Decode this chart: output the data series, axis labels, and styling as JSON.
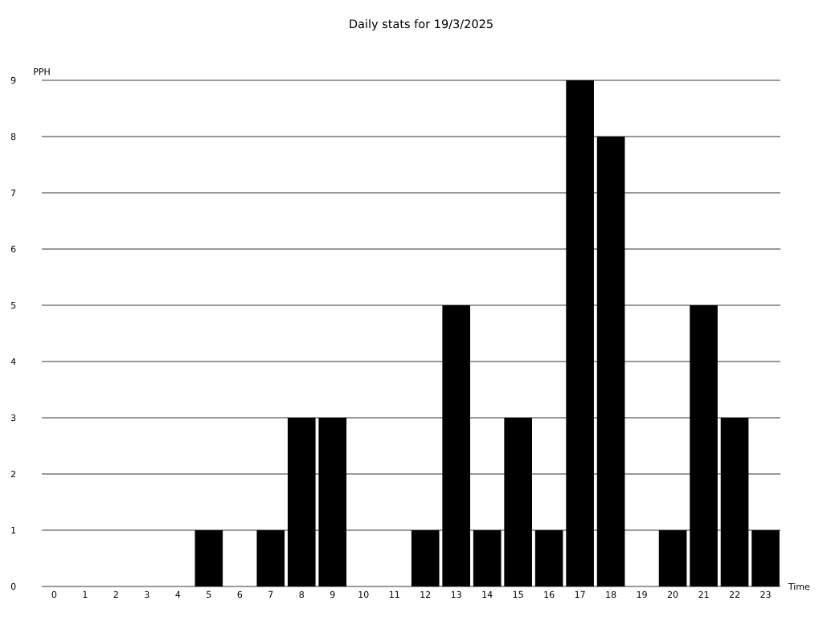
{
  "chart_data": {
    "type": "bar",
    "title": "Daily stats for 19/3/2025",
    "xlabel": "Time",
    "ylabel": "PPH",
    "categories": [
      "0",
      "1",
      "2",
      "3",
      "4",
      "5",
      "6",
      "7",
      "8",
      "9",
      "10",
      "11",
      "12",
      "13",
      "14",
      "15",
      "16",
      "17",
      "18",
      "19",
      "20",
      "21",
      "22",
      "23"
    ],
    "values": [
      0,
      0,
      0,
      0,
      0,
      1,
      0,
      1,
      3,
      3,
      0,
      0,
      1,
      5,
      1,
      3,
      1,
      9,
      8,
      0,
      1,
      5,
      3,
      1
    ],
    "color": "#000000",
    "ylim": [
      0,
      9
    ],
    "yticks": [
      0,
      1,
      2,
      3,
      4,
      5,
      6,
      7,
      8,
      9
    ],
    "grid": "y"
  }
}
